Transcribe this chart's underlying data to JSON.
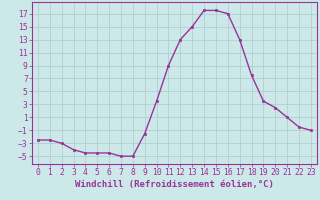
{
  "x": [
    0,
    1,
    2,
    3,
    4,
    5,
    6,
    7,
    8,
    9,
    10,
    11,
    12,
    13,
    14,
    15,
    16,
    17,
    18,
    19,
    20,
    21,
    22,
    23
  ],
  "y": [
    -2.5,
    -2.5,
    -3,
    -4,
    -4.5,
    -4.5,
    -4.5,
    -5,
    -5,
    -1.5,
    3.5,
    9,
    13,
    15,
    17.5,
    17.5,
    17,
    13,
    7.5,
    3.5,
    2.5,
    1,
    -0.5,
    -1
  ],
  "line_color": "#993399",
  "marker": "s",
  "marker_size": 2.0,
  "bg_color": "#cce8e8",
  "grid_color": "#aacccc",
  "xlabel": "Windchill (Refroidissement éolien,°C)",
  "xlabel_fontsize": 6.5,
  "yticks": [
    -5,
    -3,
    -1,
    1,
    3,
    5,
    7,
    9,
    11,
    13,
    15,
    17
  ],
  "xticks": [
    0,
    1,
    2,
    3,
    4,
    5,
    6,
    7,
    8,
    9,
    10,
    11,
    12,
    13,
    14,
    15,
    16,
    17,
    18,
    19,
    20,
    21,
    22,
    23
  ],
  "ylim": [
    -6.2,
    18.8
  ],
  "xlim": [
    -0.5,
    23.5
  ],
  "tick_fontsize": 5.8,
  "line_width": 1.0
}
